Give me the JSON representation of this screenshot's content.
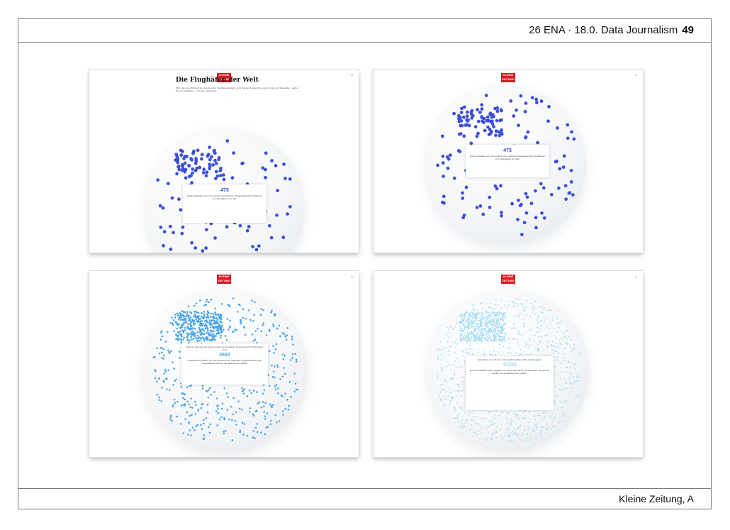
{
  "header": {
    "text": "26 ENA · 18.0. Data Journalism",
    "page_number": "49"
  },
  "footer": {
    "source": "Kleine Zeitung, A"
  },
  "brand_logo_text": "KLEINE ZEITUNG",
  "colors": {
    "dots_dark": "#3c4fd8",
    "dots_mid": "#4aa3e8",
    "dots_pale": "#9fd8f0",
    "logo_red": "#d71920"
  },
  "panels": [
    {
      "title": "Die Flughäfen der Welt",
      "intro": "Wirft man einen Blick auf die Verteilung der Flughäfen weltweit, so ist Österreich angesichts seiner Größe und Topografie – selbst kleinere Flugplätze – recht gut ausgestattet.",
      "number": "475",
      "text": "große Flughäfen mit Linienverkehr einer größeren Fluggesellschaft mit Millionen von Passagieren pro Jahr"
    },
    {
      "number": "475",
      "text": "große Flughäfen mit Linienverkehr einer größeren Fluggesellschaft mit Millionen von Passagieren pro Jahr"
    },
    {
      "intro": "Doch es gibt noch viel mehr von ihnen auf der Erde. So finden sich im Datenraum auch",
      "number": "4693",
      "text": "mittelgroße Flughäfen mit Linienverkehr einer regionalen Fluggesellschaft oder regelmäßigem Verkehr der allgemeinen Luftfahrt"
    },
    {
      "intro": "Verzeichnet ist auch eine noch deutlich größere Zahl, nämlich ganze",
      "number": "41255",
      "text": "kleinere Flughäfen oder Flugplätze mit wenig oder keinem Linienverkehr, die genutzt werden von der allgemeinen Luftfahrt"
    }
  ]
}
